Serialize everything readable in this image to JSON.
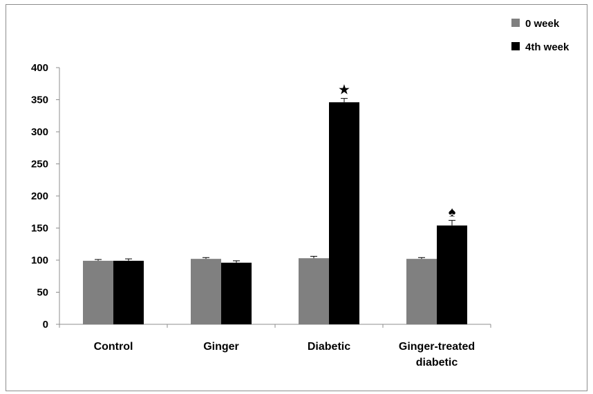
{
  "chart_data": {
    "type": "bar",
    "categories": [
      "Control",
      "Ginger",
      "Diabetic",
      "Ginger-treated diabetic"
    ],
    "category_lines": [
      [
        "Control"
      ],
      [
        "Ginger"
      ],
      [
        "Diabetic"
      ],
      [
        "Ginger-treated",
        "diabetic"
      ]
    ],
    "series": [
      {
        "name": "0 week",
        "color": "#808080",
        "values": [
          99,
          102,
          103,
          102
        ],
        "errors": [
          2,
          2,
          3,
          2
        ]
      },
      {
        "name": "4th week",
        "color": "#000000",
        "values": [
          99,
          96,
          346,
          154
        ],
        "errors": [
          3,
          3,
          6,
          8
        ]
      }
    ],
    "annotations": [
      {
        "series": 1,
        "category": 2,
        "symbol": "★",
        "name": "star-marker"
      },
      {
        "series": 1,
        "category": 3,
        "symbol": "♠",
        "name": "spade-marker"
      }
    ],
    "ylim": [
      0,
      400
    ],
    "yticks": [
      0,
      50,
      100,
      150,
      200,
      250,
      300,
      350,
      400
    ],
    "grid": false,
    "legend_position": "top-right",
    "title": "",
    "xlabel": "",
    "ylabel": ""
  }
}
